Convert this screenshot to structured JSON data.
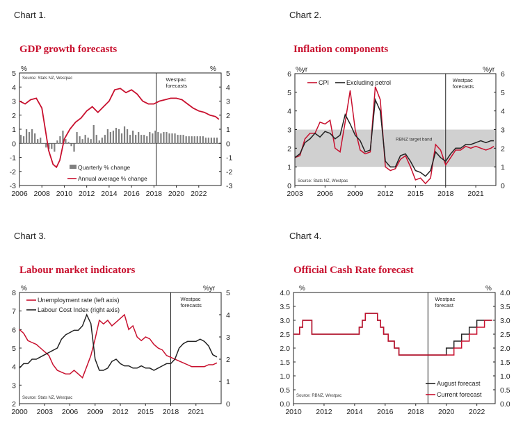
{
  "chart_data": [
    {
      "type": "bar",
      "label": "Chart 1.",
      "title": "GDP growth forecasts",
      "left_unit": "%",
      "right_unit": "%",
      "ylim": [
        -3,
        5
      ],
      "yticks": [
        -3,
        -2,
        -1,
        0,
        1,
        2,
        3,
        4,
        5
      ],
      "xlim": [
        2006,
        2024
      ],
      "xticks": [
        2006,
        2008,
        2010,
        2012,
        2014,
        2016,
        2018,
        2020,
        2022
      ],
      "source": "Source: Stats NZ, Westpac",
      "forecast_label": [
        "Westpac",
        "forecasts"
      ],
      "forecast_x": 2018.2,
      "colors": {
        "bars": "#808080",
        "line": "#c8102e"
      },
      "series": [
        {
          "name": "Quarterly % change",
          "kind": "bar",
          "x_start": 2006.0,
          "x_step": 0.25,
          "values": [
            0.6,
            0.5,
            1.0,
            0.8,
            1.0,
            0.7,
            0.3,
            0.4,
            0.0,
            -0.3,
            -0.4,
            -0.4,
            -0.6,
            0.2,
            0.5,
            0.9,
            0.3,
            0.1,
            -0.2,
            -0.6,
            0.8,
            0.5,
            0.3,
            0.6,
            0.4,
            0.3,
            1.3,
            0.6,
            0.2,
            0.4,
            0.6,
            1.0,
            0.8,
            0.9,
            1.1,
            1.0,
            0.7,
            1.2,
            1.0,
            0.6,
            0.9,
            0.6,
            0.8,
            0.6,
            0.6,
            0.5,
            0.8,
            0.7,
            0.9,
            0.8,
            0.7,
            0.8,
            0.8,
            0.7,
            0.7,
            0.7,
            0.6,
            0.6,
            0.6,
            0.5,
            0.5,
            0.5,
            0.5,
            0.5,
            0.5,
            0.5,
            0.4,
            0.4,
            0.4,
            0.4,
            0.4
          ]
        },
        {
          "name": "Annual average % change",
          "kind": "line",
          "x": [
            2006,
            2006.5,
            2007,
            2007.5,
            2008,
            2008.3,
            2008.6,
            2009,
            2009.3,
            2009.6,
            2010,
            2010.5,
            2011,
            2011.5,
            2012,
            2012.5,
            2013,
            2013.5,
            2014,
            2014.5,
            2015,
            2015.5,
            2016,
            2016.5,
            2017,
            2017.5,
            2018,
            2018.5,
            2019,
            2019.5,
            2020,
            2020.5,
            2021,
            2021.5,
            2022,
            2022.5,
            2023,
            2023.5,
            2023.8
          ],
          "y": [
            3.0,
            2.8,
            3.1,
            3.2,
            2.5,
            1.0,
            -0.5,
            -1.5,
            -1.7,
            -1.2,
            0.3,
            1.0,
            1.5,
            1.8,
            2.3,
            2.6,
            2.2,
            2.6,
            3.0,
            3.8,
            3.9,
            3.6,
            3.8,
            3.5,
            3.0,
            2.8,
            2.8,
            3.0,
            3.1,
            3.2,
            3.2,
            3.1,
            2.8,
            2.5,
            2.3,
            2.2,
            2.0,
            1.9,
            1.7
          ]
        }
      ]
    },
    {
      "type": "line",
      "label": "Chart 2.",
      "title": "Inflation components",
      "left_unit": "%yr",
      "right_unit": "%yr",
      "ylim": [
        0,
        6
      ],
      "yticks": [
        0,
        1,
        2,
        3,
        4,
        5,
        6
      ],
      "xlim": [
        2003,
        2023
      ],
      "xticks": [
        2003,
        2006,
        2009,
        2012,
        2015,
        2018,
        2021
      ],
      "source": "Source: Stats NZ, Westpac",
      "band": {
        "from": 1,
        "to": 3,
        "label": "RBNZ target band"
      },
      "forecast_label": [
        "Westpac",
        "forecasts"
      ],
      "forecast_x": 2018.0,
      "colors": {
        "cpi": "#c8102e",
        "excl": "#222222",
        "band": "#d0d0d0"
      },
      "series": [
        {
          "name": "CPI",
          "x": [
            2003,
            2003.5,
            2004,
            2004.5,
            2005,
            2005.5,
            2006,
            2006.5,
            2007,
            2007.5,
            2008,
            2008.5,
            2009,
            2009.5,
            2010,
            2010.5,
            2011,
            2011.5,
            2012,
            2012.5,
            2013,
            2013.5,
            2014,
            2014.5,
            2015,
            2015.5,
            2016,
            2016.5,
            2017,
            2017.5,
            2018,
            2018.5,
            2019,
            2019.5,
            2020,
            2020.5,
            2021,
            2021.5,
            2022,
            2022.5,
            2022.8
          ],
          "y": [
            1.5,
            1.6,
            2.5,
            2.8,
            2.8,
            3.4,
            3.3,
            3.5,
            2.0,
            1.8,
            3.4,
            5.1,
            3.0,
            1.9,
            1.7,
            1.8,
            5.3,
            4.6,
            1.0,
            0.8,
            0.9,
            1.4,
            1.6,
            1.0,
            0.3,
            0.4,
            0.1,
            0.4,
            2.2,
            1.9,
            1.1,
            1.5,
            1.9,
            1.9,
            2.1,
            2.0,
            2.1,
            2.0,
            1.9,
            2.0,
            2.1
          ]
        },
        {
          "name": "Excluding petrol",
          "x": [
            2003,
            2003.5,
            2004,
            2004.5,
            2005,
            2005.5,
            2006,
            2006.5,
            2007,
            2007.5,
            2008,
            2008.5,
            2009,
            2009.5,
            2010,
            2010.5,
            2011,
            2011.5,
            2012,
            2012.5,
            2013,
            2013.5,
            2014,
            2014.5,
            2015,
            2015.5,
            2016,
            2016.5,
            2017,
            2017.5,
            2018,
            2018.5,
            2019,
            2019.5,
            2020,
            2020.5,
            2021,
            2021.5,
            2022,
            2022.5,
            2022.8
          ],
          "y": [
            1.5,
            1.7,
            2.3,
            2.5,
            2.8,
            2.6,
            2.9,
            2.8,
            2.5,
            2.7,
            3.8,
            3.3,
            2.7,
            2.4,
            1.8,
            1.9,
            4.6,
            4.0,
            1.3,
            1.0,
            1.0,
            1.6,
            1.7,
            1.3,
            0.8,
            0.7,
            0.5,
            0.8,
            1.8,
            1.5,
            1.3,
            1.7,
            2.0,
            2.0,
            2.2,
            2.2,
            2.3,
            2.4,
            2.3,
            2.4,
            2.4
          ]
        }
      ]
    },
    {
      "type": "line",
      "label": "Chart 3.",
      "title": "Labour market indicators",
      "left_unit": "%",
      "right_unit": "%yr",
      "ylim": [
        2,
        8
      ],
      "yticks": [
        2,
        3,
        4,
        5,
        6,
        7,
        8
      ],
      "y2lim": [
        0,
        5
      ],
      "y2ticks": [
        0,
        1,
        2,
        3,
        4,
        5
      ],
      "xlim": [
        2000,
        2024
      ],
      "xticks": [
        2000,
        2003,
        2006,
        2009,
        2012,
        2015,
        2018,
        2021
      ],
      "source": "Source: Stats NZ, Westpac",
      "forecast_label": [
        "Westpac",
        "forecasts"
      ],
      "forecast_x": 2018.0,
      "colors": {
        "unemp": "#c8102e",
        "lci": "#222222"
      },
      "series": [
        {
          "name": "Unemployment rate (left axis)",
          "axis": "left",
          "x": [
            2000,
            2000.5,
            2001,
            2001.5,
            2002,
            2002.5,
            2003,
            2003.5,
            2004,
            2004.5,
            2005,
            2005.5,
            2006,
            2006.5,
            2007,
            2007.5,
            2008,
            2008.5,
            2009,
            2009.5,
            2010,
            2010.5,
            2011,
            2011.5,
            2012,
            2012.5,
            2013,
            2013.5,
            2014,
            2014.5,
            2015,
            2015.5,
            2016,
            2016.5,
            2017,
            2017.5,
            2018,
            2018.5,
            2019,
            2019.5,
            2020,
            2020.5,
            2021,
            2021.5,
            2022,
            2022.5,
            2023,
            2023.5
          ],
          "y": [
            6.0,
            5.8,
            5.4,
            5.3,
            5.2,
            5.0,
            4.8,
            4.6,
            4.1,
            3.8,
            3.7,
            3.6,
            3.6,
            3.8,
            3.6,
            3.4,
            4.0,
            4.6,
            5.5,
            6.5,
            6.3,
            6.5,
            6.2,
            6.4,
            6.6,
            6.8,
            6.0,
            6.2,
            5.6,
            5.4,
            5.6,
            5.5,
            5.2,
            5.0,
            4.9,
            4.6,
            4.5,
            4.4,
            4.3,
            4.2,
            4.1,
            4.0,
            4.0,
            4.0,
            4.0,
            4.1,
            4.1,
            4.2
          ]
        },
        {
          "name": "Labour Cost Index (right axis)",
          "axis": "right",
          "x": [
            2000,
            2000.5,
            2001,
            2001.5,
            2002,
            2002.5,
            2003,
            2003.5,
            2004,
            2004.5,
            2005,
            2005.5,
            2006,
            2006.5,
            2007,
            2007.5,
            2008,
            2008.5,
            2009,
            2009.5,
            2010,
            2010.5,
            2011,
            2011.5,
            2012,
            2012.5,
            2013,
            2013.5,
            2014,
            2014.5,
            2015,
            2015.5,
            2016,
            2016.5,
            2017,
            2017.5,
            2018,
            2018.5,
            2019,
            2019.5,
            2020,
            2020.5,
            2021,
            2021.5,
            2022,
            2022.5,
            2023,
            2023.5
          ],
          "y": [
            1.6,
            1.8,
            1.8,
            2.0,
            2.0,
            2.1,
            2.2,
            2.3,
            2.4,
            2.5,
            2.9,
            3.1,
            3.2,
            3.3,
            3.3,
            3.5,
            4.0,
            3.6,
            2.0,
            1.5,
            1.5,
            1.6,
            1.9,
            2.0,
            1.8,
            1.7,
            1.7,
            1.6,
            1.6,
            1.7,
            1.6,
            1.6,
            1.5,
            1.6,
            1.7,
            1.8,
            1.8,
            2.0,
            2.5,
            2.7,
            2.8,
            2.8,
            2.8,
            2.9,
            2.8,
            2.6,
            2.2,
            2.1
          ]
        }
      ]
    },
    {
      "type": "line",
      "label": "Chart 4.",
      "title": "Official Cash Rate forecast",
      "left_unit": "%",
      "right_unit": "%",
      "ylim": [
        0,
        4
      ],
      "yticks": [
        0.0,
        0.5,
        1.0,
        1.5,
        2.0,
        2.5,
        3.0,
        3.5,
        4.0
      ],
      "ytick_labels": [
        "0.0",
        "0.5",
        "1.0",
        "1.5",
        "2.0",
        "2.5",
        "3.0",
        "3.5",
        "4.0"
      ],
      "xlim": [
        2010,
        2023.2
      ],
      "xticks": [
        2010,
        2012,
        2014,
        2016,
        2018,
        2020,
        2022
      ],
      "source": "Source: RBNZ, Westpac",
      "forecast_label": [
        "Westpac",
        "forecast"
      ],
      "forecast_x": 2018.8,
      "colors": {
        "august": "#222222",
        "current": "#c8102e"
      },
      "series": [
        {
          "name": "August forecast",
          "step": true,
          "x": [
            2010,
            2010.4,
            2010.6,
            2011.2,
            2014.3,
            2014.5,
            2014.7,
            2015.5,
            2015.7,
            2015.9,
            2016.2,
            2016.6,
            2016.9,
            2020.0,
            2020.5,
            2021.0,
            2021.5,
            2022.0,
            2023.0
          ],
          "y": [
            2.5,
            2.75,
            3.0,
            2.5,
            2.75,
            3.0,
            3.25,
            3.0,
            2.75,
            2.5,
            2.25,
            2.0,
            1.75,
            2.0,
            2.25,
            2.5,
            2.75,
            3.0,
            3.0
          ]
        },
        {
          "name": "Current forecast",
          "step": true,
          "x": [
            2010,
            2010.4,
            2010.6,
            2011.2,
            2014.3,
            2014.5,
            2014.7,
            2015.5,
            2015.7,
            2015.9,
            2016.2,
            2016.6,
            2016.9,
            2020.5,
            2021.0,
            2021.5,
            2022.0,
            2022.5,
            2023.0
          ],
          "y": [
            2.5,
            2.75,
            3.0,
            2.5,
            2.75,
            3.0,
            3.25,
            3.0,
            2.75,
            2.5,
            2.25,
            2.0,
            1.75,
            2.0,
            2.25,
            2.5,
            2.75,
            3.0,
            3.0
          ]
        }
      ]
    }
  ]
}
